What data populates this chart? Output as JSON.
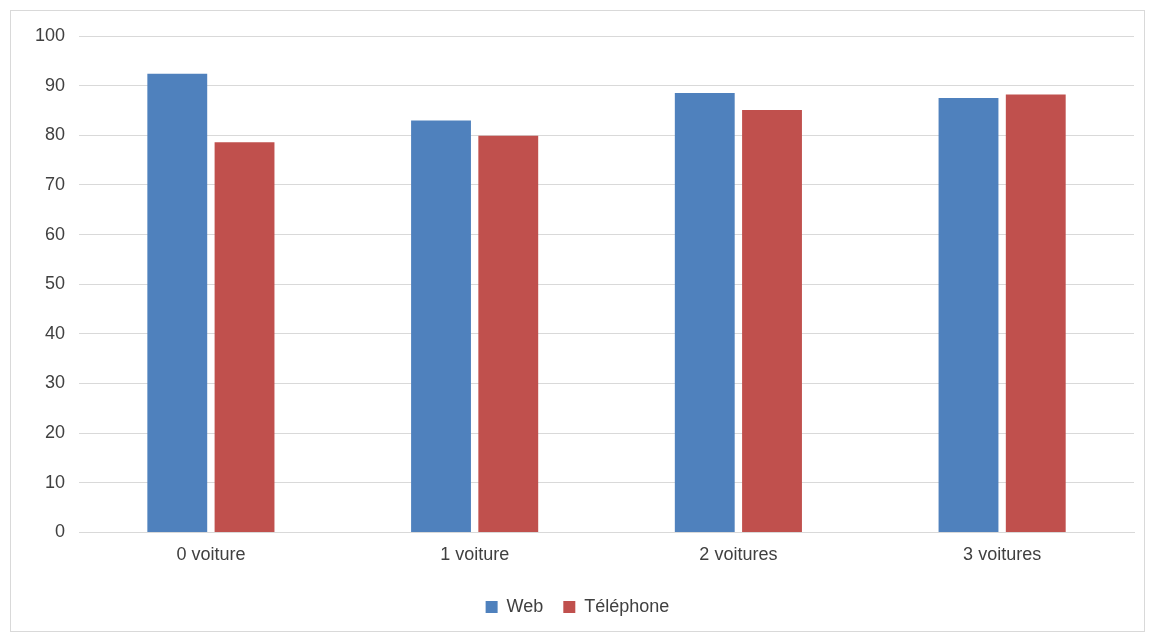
{
  "chart_data": {
    "type": "bar",
    "categories": [
      "0 voiture",
      "1 voiture",
      "2 voitures",
      "3 voitures"
    ],
    "series": [
      {
        "name": "Web",
        "color": "#4f81bd",
        "values": [
          92.4,
          83.0,
          88.5,
          87.5
        ]
      },
      {
        "name": "Téléphone",
        "color": "#c0504d",
        "values": [
          78.6,
          79.9,
          85.1,
          88.2
        ]
      }
    ],
    "ylim": [
      0,
      100
    ],
    "yticks": [
      0,
      10,
      20,
      30,
      40,
      50,
      60,
      70,
      80,
      90,
      100
    ],
    "grid": "y",
    "legend": "bottom"
  }
}
